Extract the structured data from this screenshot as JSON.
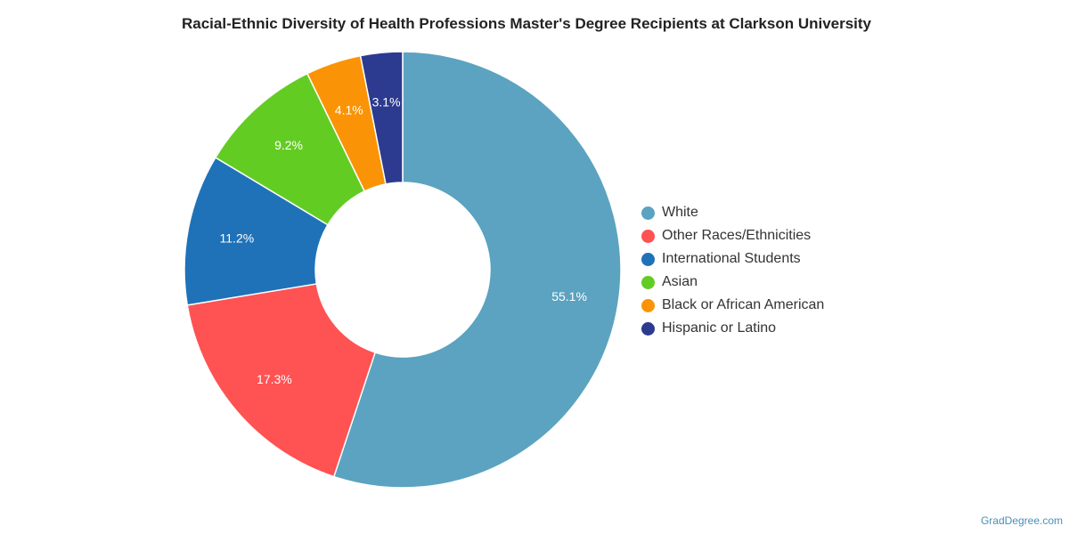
{
  "chart_data": {
    "type": "pie",
    "variant": "donut",
    "title": "Racial-Ethnic Diversity of Health Professions Master's Degree Recipients at Clarkson University",
    "legend_position": "right",
    "series": [
      {
        "name": "White",
        "value": 55.1,
        "label": "55.1%",
        "color": "#5ba3c0"
      },
      {
        "name": "Other Races/Ethnicities",
        "value": 17.3,
        "label": "17.3%",
        "color": "#ff5252"
      },
      {
        "name": "International Students",
        "value": 11.2,
        "label": "11.2%",
        "color": "#1f72b8"
      },
      {
        "name": "Asian",
        "value": 9.2,
        "label": "9.2%",
        "color": "#63cc23"
      },
      {
        "name": "Black or African American",
        "value": 4.1,
        "label": "4.1%",
        "color": "#fa9406"
      },
      {
        "name": "Hispanic or Latino",
        "value": 3.1,
        "label": "3.1%",
        "color": "#2c3a8f"
      }
    ]
  },
  "credit": "GradDegree.com"
}
